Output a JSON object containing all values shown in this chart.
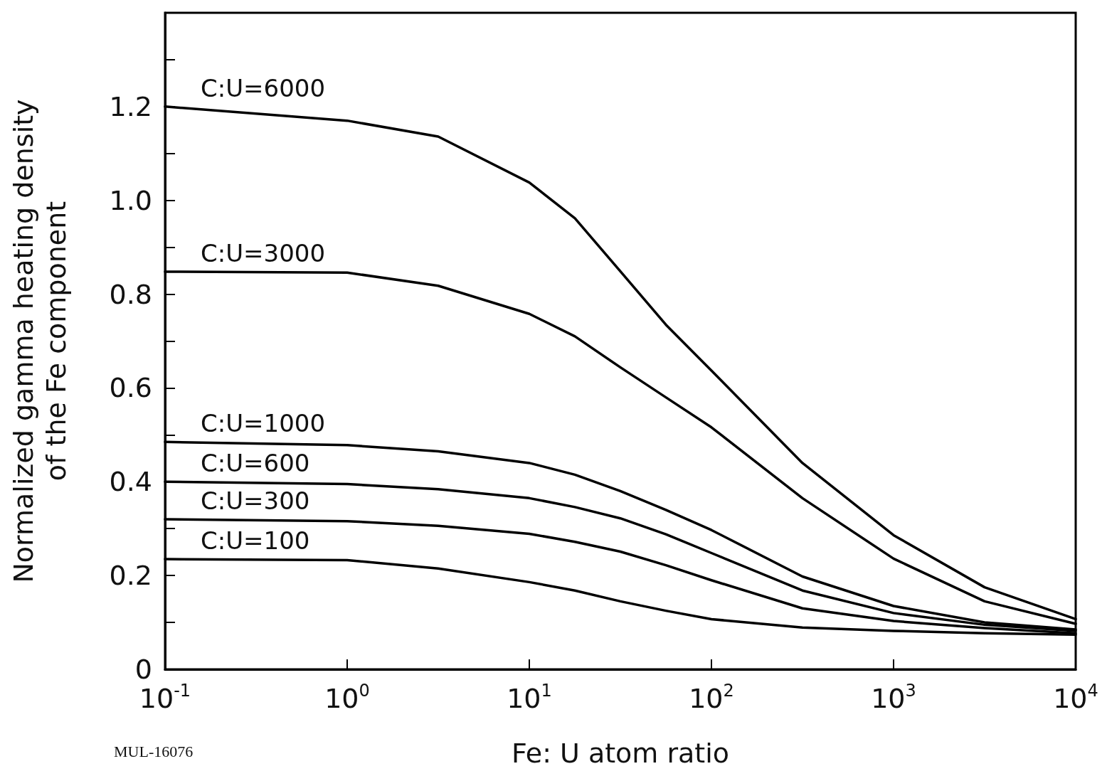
{
  "chart_data": {
    "type": "line",
    "xlabel": "Fe: U atom ratio",
    "ylabel": "Normalized gamma heating density\nof the Fe component",
    "log": "x",
    "xlim": [
      0.1,
      10000
    ],
    "ylim": [
      0,
      1.4
    ],
    "xticks": [
      {
        "value": 0.1,
        "label": "10$^{-1}$"
      },
      {
        "value": 1,
        "label": "10$^{0}$"
      },
      {
        "value": 10,
        "label": "10$^{1}$"
      },
      {
        "value": 100,
        "label": "10$^{2}$"
      },
      {
        "value": 1000,
        "label": "10$^{3}$"
      },
      {
        "value": 10000,
        "label": "10$^{4}$"
      }
    ],
    "yticks": [
      {
        "value": 0,
        "label": "0"
      },
      {
        "value": 0.1,
        "label": null
      },
      {
        "value": 0.2,
        "label": "0.2"
      },
      {
        "value": 0.3,
        "label": null
      },
      {
        "value": 0.4,
        "label": "0.4"
      },
      {
        "value": 0.5,
        "label": null
      },
      {
        "value": 0.6,
        "label": "0.6"
      },
      {
        "value": 0.7,
        "label": null
      },
      {
        "value": 0.8,
        "label": "0.8"
      },
      {
        "value": 0.9,
        "label": null
      },
      {
        "value": 1,
        "label": "1.0"
      },
      {
        "value": 1.1,
        "label": null
      },
      {
        "value": 1.2,
        "label": "1.2"
      },
      {
        "value": 1.3,
        "label": null
      }
    ],
    "x": [
      0.1,
      1,
      3.16,
      10,
      17.8,
      31.6,
      56.2,
      100,
      316,
      1000,
      3160,
      10000
    ],
    "series": [
      {
        "name": "C:U=6000",
        "color": "#000000",
        "values": [
          1.2,
          1.17,
          1.136,
          1.038,
          0.962,
          0.849,
          0.735,
          0.637,
          0.44,
          0.286,
          0.175,
          0.107
        ]
      },
      {
        "name": "C:U=3000",
        "color": "#000000",
        "values": [
          0.848,
          0.846,
          0.818,
          0.758,
          0.71,
          0.644,
          0.58,
          0.516,
          0.365,
          0.236,
          0.145,
          0.097
        ]
      },
      {
        "name": "C:U=1000",
        "color": "#000000",
        "values": [
          0.485,
          0.478,
          0.465,
          0.44,
          0.415,
          0.38,
          0.34,
          0.297,
          0.198,
          0.135,
          0.1,
          0.085
        ]
      },
      {
        "name": "C:U=600",
        "color": "#000000",
        "values": [
          0.4,
          0.395,
          0.384,
          0.365,
          0.346,
          0.322,
          0.288,
          0.248,
          0.168,
          0.12,
          0.095,
          0.082
        ]
      },
      {
        "name": "C:U=300",
        "color": "#000000",
        "values": [
          0.32,
          0.316,
          0.306,
          0.289,
          0.272,
          0.251,
          0.222,
          0.19,
          0.13,
          0.103,
          0.088,
          0.077
        ]
      },
      {
        "name": "C:U=100",
        "color": "#000000",
        "values": [
          0.235,
          0.233,
          0.215,
          0.186,
          0.168,
          0.145,
          0.125,
          0.107,
          0.089,
          0.082,
          0.077,
          0.074
        ]
      }
    ],
    "marker": "none",
    "line_style": "solid",
    "grid": false,
    "annotations": [
      "MUL-16076"
    ]
  }
}
